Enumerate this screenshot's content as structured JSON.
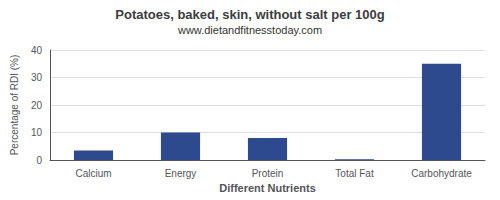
{
  "chart_data": {
    "type": "bar",
    "title": "Potatoes, baked, skin, without salt per 100g",
    "subtitle": "www.dietandfitnesstoday.com",
    "xlabel": "Different Nutrients",
    "ylabel": "Percentage of RDI (%)",
    "categories": [
      "Calcium",
      "Energy",
      "Protein",
      "Total Fat",
      "Carbohydrate"
    ],
    "values": [
      3.5,
      10.0,
      8.0,
      0.3,
      35.0
    ],
    "color": "#2e4a8e",
    "ylim": [
      0,
      40
    ],
    "yticks": [
      0,
      10,
      20,
      30,
      40
    ],
    "grid": true
  }
}
